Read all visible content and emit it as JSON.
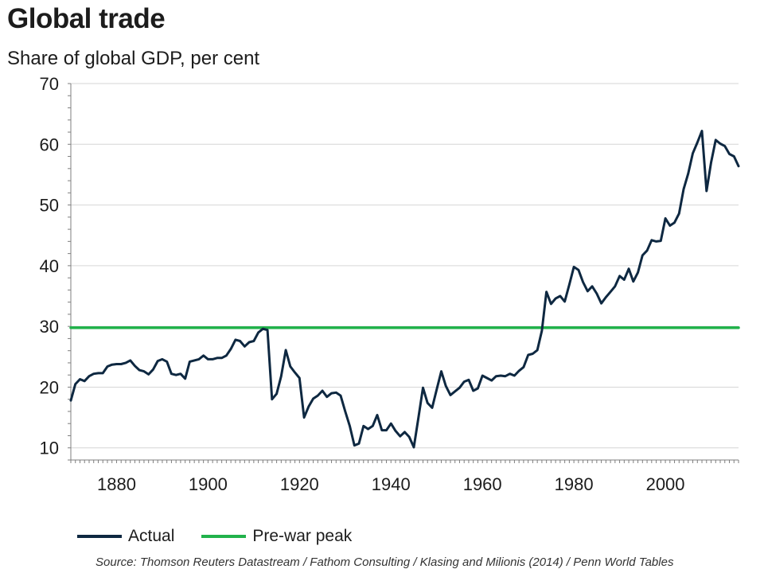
{
  "chart_data": {
    "type": "line",
    "title": "Global trade",
    "subtitle": "Share of global GDP, per cent",
    "source": "Source: Thomson Reuters Datastream / Fathom Consulting / Klasing and Milionis (2014) / Penn World Tables",
    "xlim": [
      1870,
      2016
    ],
    "ylim": [
      8,
      70
    ],
    "xticks": [
      1880,
      1900,
      1920,
      1940,
      1960,
      1980,
      2000
    ],
    "yticks": [
      10,
      20,
      30,
      40,
      50,
      60,
      70
    ],
    "grid": true,
    "legend_position": "bottom-left",
    "series": [
      {
        "name": "Actual",
        "color": "#0e2841",
        "x": [
          1870,
          1871,
          1872,
          1873,
          1874,
          1875,
          1876,
          1877,
          1878,
          1879,
          1880,
          1881,
          1882,
          1883,
          1884,
          1885,
          1886,
          1887,
          1888,
          1889,
          1890,
          1891,
          1892,
          1893,
          1894,
          1895,
          1896,
          1897,
          1898,
          1899,
          1900,
          1901,
          1902,
          1903,
          1904,
          1905,
          1906,
          1907,
          1908,
          1909,
          1910,
          1911,
          1912,
          1913,
          1914,
          1915,
          1916,
          1917,
          1918,
          1919,
          1920,
          1921,
          1922,
          1923,
          1924,
          1925,
          1926,
          1927,
          1928,
          1929,
          1930,
          1931,
          1932,
          1933,
          1934,
          1935,
          1936,
          1937,
          1938,
          1939,
          1940,
          1941,
          1942,
          1943,
          1944,
          1945,
          1946,
          1947,
          1948,
          1949,
          1950,
          1951,
          1952,
          1953,
          1954,
          1955,
          1956,
          1957,
          1958,
          1959,
          1960,
          1961,
          1962,
          1963,
          1964,
          1965,
          1966,
          1967,
          1968,
          1969,
          1970,
          1971,
          1972,
          1973,
          1974,
          1975,
          1976,
          1977,
          1978,
          1979,
          1980,
          1981,
          1982,
          1983,
          1984,
          1985,
          1986,
          1987,
          1988,
          1989,
          1990,
          1991,
          1992,
          1993,
          1994,
          1995,
          1996,
          1997,
          1998,
          1999,
          2000,
          2001,
          2002,
          2003,
          2004,
          2005,
          2006,
          2007,
          2008,
          2009,
          2010,
          2011,
          2012,
          2013,
          2014,
          2015,
          2016
        ],
        "values": [
          17.8,
          20.5,
          21.3,
          21.0,
          21.8,
          22.2,
          22.3,
          22.3,
          23.4,
          23.7,
          23.8,
          23.8,
          24.0,
          24.4,
          23.5,
          22.8,
          22.6,
          22.1,
          22.9,
          24.3,
          24.6,
          24.2,
          22.2,
          22.0,
          22.2,
          21.4,
          24.2,
          24.4,
          24.6,
          25.2,
          24.6,
          24.6,
          24.8,
          24.8,
          25.2,
          26.3,
          27.8,
          27.6,
          26.7,
          27.4,
          27.6,
          29.0,
          29.6,
          29.4,
          18.0,
          18.9,
          21.8,
          26.1,
          23.4,
          22.4,
          21.5,
          15.0,
          16.8,
          18.1,
          18.6,
          19.4,
          18.4,
          19.0,
          19.1,
          18.6,
          16.0,
          13.6,
          10.4,
          10.7,
          13.6,
          13.1,
          13.6,
          15.4,
          12.9,
          12.9,
          14.0,
          12.8,
          11.9,
          12.6,
          11.8,
          10.1,
          14.9,
          19.9,
          17.4,
          16.6,
          19.6,
          22.6,
          20.2,
          18.7,
          19.3,
          19.9,
          20.9,
          21.2,
          19.4,
          19.8,
          21.9,
          21.5,
          21.1,
          21.8,
          21.9,
          21.8,
          22.2,
          21.9,
          22.7,
          23.3,
          25.3,
          25.5,
          26.1,
          29.3,
          35.7,
          33.7,
          34.6,
          35.0,
          34.1,
          36.9,
          39.8,
          39.3,
          37.3,
          35.8,
          36.6,
          35.4,
          33.8,
          34.8,
          35.7,
          36.6,
          38.3,
          37.7,
          39.5,
          37.4,
          38.9,
          41.7,
          42.5,
          44.2,
          44.0,
          44.1,
          47.8,
          46.6,
          47.1,
          48.6,
          52.6,
          55.2,
          58.5,
          60.3,
          62.2,
          52.3,
          57.0,
          60.7,
          60.1,
          59.7,
          58.4,
          58.0,
          56.4
        ]
      },
      {
        "name": "Pre-war peak",
        "color": "#21b24b",
        "x": [
          1870,
          2016
        ],
        "values": [
          29.8,
          29.8
        ]
      }
    ]
  }
}
